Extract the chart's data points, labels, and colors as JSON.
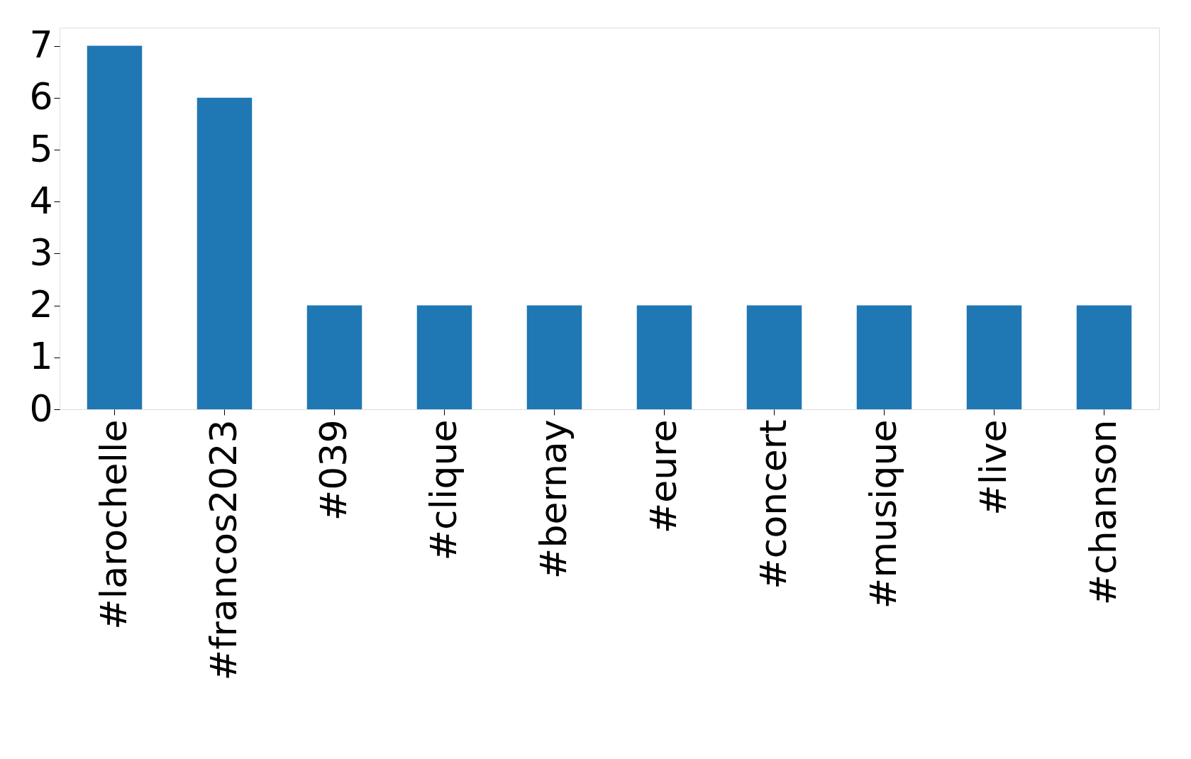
{
  "chart_data": {
    "type": "bar",
    "categories": [
      "#larochelle",
      "#francos2023",
      "#039",
      "#clique",
      "#bernay",
      "#eure",
      "#concert",
      "#musique",
      "#live",
      "#chanson"
    ],
    "values": [
      7,
      6,
      2,
      2,
      2,
      2,
      2,
      2,
      2,
      2
    ],
    "color": "#1f77b4",
    "ylim": [
      0,
      7.35
    ],
    "yticks": [
      0,
      1,
      2,
      3,
      4,
      5,
      6,
      7
    ],
    "grid": false
  }
}
